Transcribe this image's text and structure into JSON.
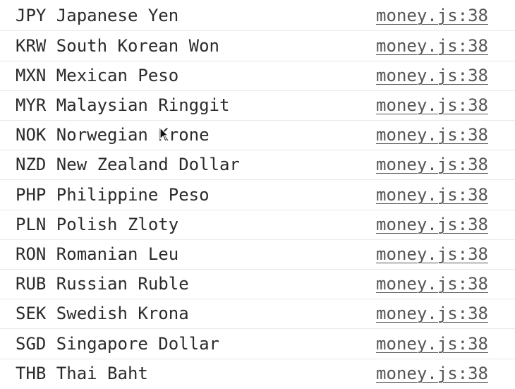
{
  "rows": [
    {
      "message": "JPY Japanese Yen",
      "source": "money.js:38"
    },
    {
      "message": "KRW South Korean Won",
      "source": "money.js:38"
    },
    {
      "message": "MXN Mexican Peso",
      "source": "money.js:38"
    },
    {
      "message": "MYR Malaysian Ringgit",
      "source": "money.js:38"
    },
    {
      "message": "NOK Norwegian Krone",
      "source": "money.js:38"
    },
    {
      "message": "NZD New Zealand Dollar",
      "source": "money.js:38"
    },
    {
      "message": "PHP Philippine Peso",
      "source": "money.js:38"
    },
    {
      "message": "PLN Polish Zloty",
      "source": "money.js:38"
    },
    {
      "message": "RON Romanian Leu",
      "source": "money.js:38"
    },
    {
      "message": "RUB Russian Ruble",
      "source": "money.js:38"
    },
    {
      "message": "SEK Swedish Krona",
      "source": "money.js:38"
    },
    {
      "message": "SGD Singapore Dollar",
      "source": "money.js:38"
    },
    {
      "message": "THB Thai Baht",
      "source": "money.js:38"
    }
  ],
  "cursor_icon": "mouse-pointer-icon"
}
